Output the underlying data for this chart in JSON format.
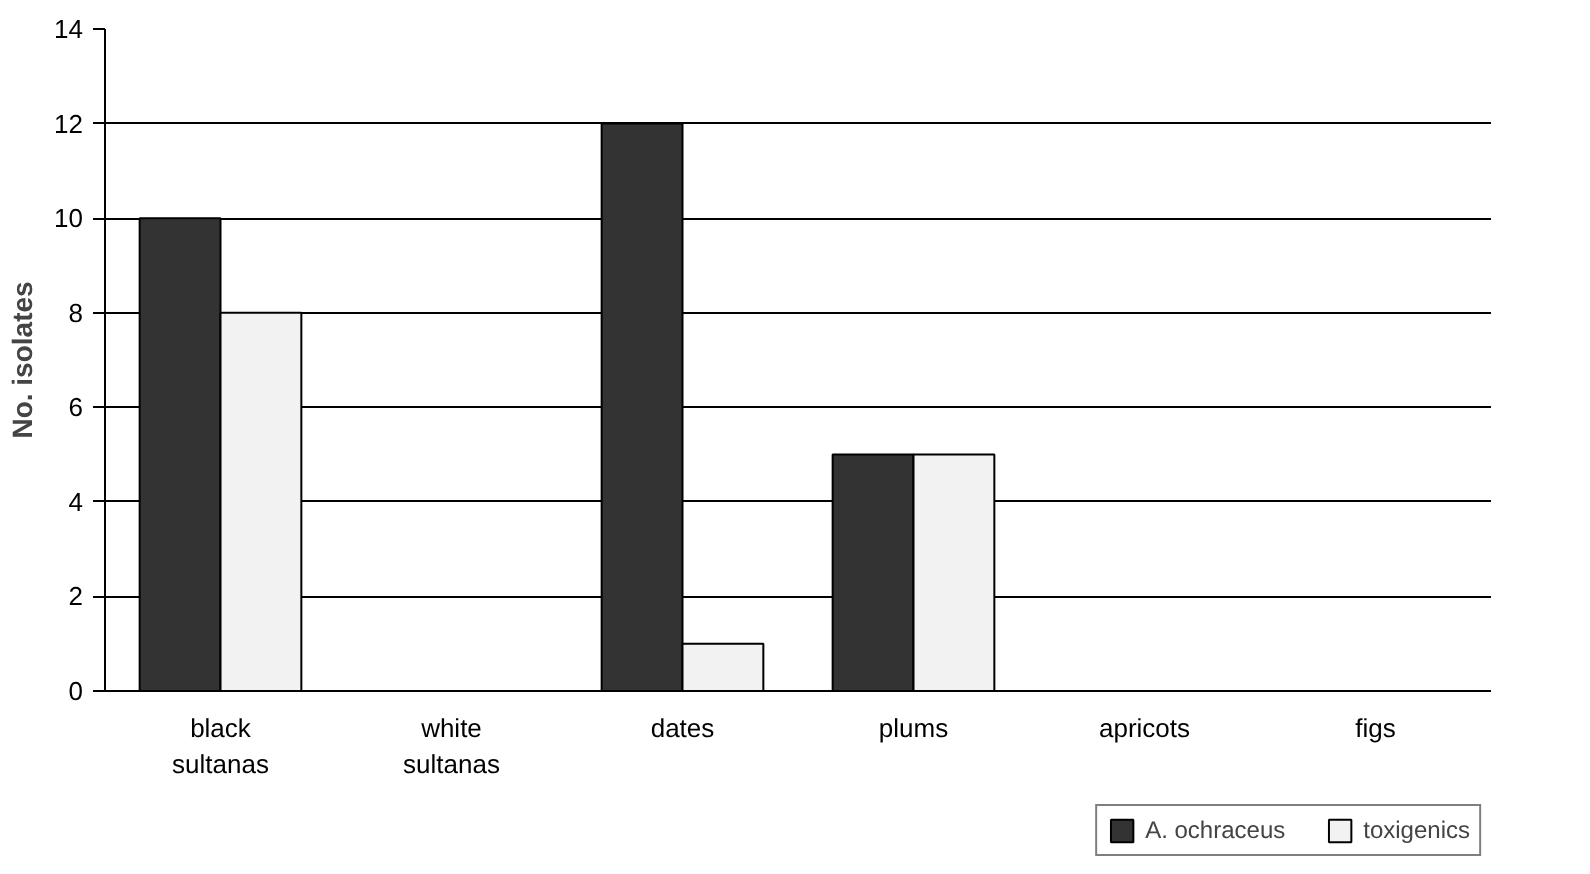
{
  "chart_data": {
    "type": "bar",
    "ylabel": "No. isolates",
    "categories": [
      "black\nsultanas",
      "white\nsultanas",
      "dates",
      "plums",
      "apricots",
      "figs"
    ],
    "series": [
      {
        "name": "A. ochraceus",
        "color": "#333333",
        "values": [
          10,
          0,
          12,
          5,
          0,
          0
        ]
      },
      {
        "name": "toxigenics",
        "color": "#f2f2f2",
        "values": [
          8,
          0,
          1,
          5,
          0,
          0
        ]
      }
    ],
    "ylim": [
      0,
      14
    ],
    "yticks": [
      0,
      2,
      4,
      6,
      8,
      10,
      12,
      14
    ],
    "grid": "y",
    "legend": "bottom right"
  }
}
